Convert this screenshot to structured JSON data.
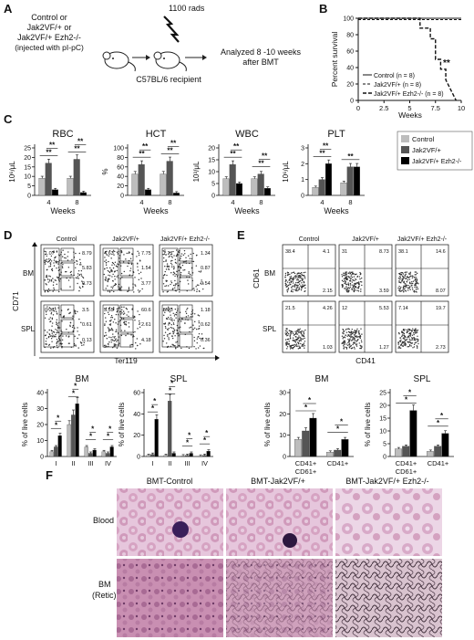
{
  "panel_labels": [
    "A",
    "B",
    "C",
    "D",
    "E",
    "F"
  ],
  "panelA": {
    "donor_text": [
      "Control or",
      "Jak2VF/+ or",
      "Jak2VF/+ Ezh2-/-",
      "(injected with pI-pC)"
    ],
    "dose": "1100 rads",
    "recipient": "C57BL/6 recipient",
    "analysis": [
      "Analyzed 8 -10 weeks",
      "after BMT"
    ]
  },
  "panelB": {
    "ylabel": "Percent survival",
    "xlabel": "Weeks",
    "xticks": [
      "0",
      "2.5",
      "5",
      "7.5",
      "10"
    ],
    "yticks": [
      "0",
      "20",
      "40",
      "60",
      "80",
      "100"
    ],
    "legend": [
      "Control (n = 8)",
      "Jak2VF/+ (n = 8)",
      "Jak2VF/+ Ezh2-/- (n = 8)"
    ],
    "significance": "**"
  },
  "panelC": {
    "legend": [
      "Control",
      "Jak2VF/+",
      "Jak2VF/+ Ezh2-/-"
    ],
    "colors": [
      "#bdbdbd",
      "#555555",
      "#000000"
    ],
    "xlabel": "Weeks"
  },
  "chart_data": [
    {
      "type": "line",
      "ylabel": "Percent survival",
      "xlabel": "Weeks",
      "xlim": [
        0,
        10
      ],
      "ylim": [
        0,
        100
      ],
      "series": [
        {
          "name": "Control (n = 8)",
          "x": [
            0,
            10
          ],
          "y": [
            100,
            100
          ]
        },
        {
          "name": "Jak2VF/+ (n = 8)",
          "x": [
            0,
            10
          ],
          "y": [
            100,
            100
          ]
        },
        {
          "name": "Jak2VF/+ Ezh2-/- (n = 8)",
          "x": [
            0,
            6,
            6,
            7,
            7,
            7.5,
            7.5,
            8,
            8,
            8.5,
            8.5,
            9.5
          ],
          "y": [
            100,
            100,
            88,
            88,
            75,
            75,
            50,
            50,
            38,
            38,
            25,
            0
          ]
        }
      ]
    },
    {
      "type": "bar",
      "title": "RBC",
      "ylabel": "10⁶/μL",
      "xlabel": "Weeks",
      "categories": [
        "4",
        "8"
      ],
      "ylim": [
        0,
        25
      ],
      "yticks": [
        "0",
        "5",
        "10",
        "15",
        "20",
        "25"
      ],
      "series": [
        {
          "name": "Control",
          "values": [
            9,
            9
          ]
        },
        {
          "name": "Jak2VF/+",
          "values": [
            17,
            19
          ]
        },
        {
          "name": "Jak2VF/+ Ezh2-/-",
          "values": [
            3,
            1.5
          ]
        }
      ],
      "annotations": [
        "**",
        "**",
        "**",
        "**"
      ]
    },
    {
      "type": "bar",
      "title": "HCT",
      "ylabel": "%",
      "xlabel": "Weeks",
      "categories": [
        "4",
        "8"
      ],
      "ylim": [
        0,
        100
      ],
      "yticks": [
        "0",
        "20",
        "40",
        "60",
        "80",
        "100"
      ],
      "series": [
        {
          "name": "Control",
          "values": [
            45,
            45
          ]
        },
        {
          "name": "Jak2VF/+",
          "values": [
            65,
            72
          ]
        },
        {
          "name": "Jak2VF/+ Ezh2-/-",
          "values": [
            12,
            5
          ]
        }
      ],
      "annotations": [
        "**",
        "**",
        "**",
        "**"
      ]
    },
    {
      "type": "bar",
      "title": "WBC",
      "ylabel": "10³/μL",
      "xlabel": "Weeks",
      "categories": [
        "4",
        "8"
      ],
      "ylim": [
        0,
        20
      ],
      "yticks": [
        "0",
        "5",
        "10",
        "15",
        "20"
      ],
      "series": [
        {
          "name": "Control",
          "values": [
            7,
            7
          ]
        },
        {
          "name": "Jak2VF/+",
          "values": [
            13,
            9
          ]
        },
        {
          "name": "Jak2VF/+ Ezh2-/-",
          "values": [
            5,
            3
          ]
        }
      ],
      "annotations": [
        "**",
        "**",
        "**",
        "**"
      ]
    },
    {
      "type": "bar",
      "title": "PLT",
      "ylabel": "10⁶/μL",
      "xlabel": "Weeks",
      "categories": [
        "4",
        "8"
      ],
      "ylim": [
        0,
        3
      ],
      "yticks": [
        "0",
        "1",
        "2",
        "3"
      ],
      "series": [
        {
          "name": "Control",
          "values": [
            0.5,
            0.8
          ]
        },
        {
          "name": "Jak2VF/+",
          "values": [
            1.0,
            1.8
          ]
        },
        {
          "name": "Jak2VF/+ Ezh2-/-",
          "values": [
            2.0,
            1.8
          ]
        }
      ],
      "annotations": [
        "**",
        "**",
        "**"
      ]
    },
    {
      "type": "bar",
      "title": "BM",
      "ylabel": "% of live cells",
      "categories": [
        "I",
        "II",
        "III",
        "IV"
      ],
      "ylim": [
        0,
        40
      ],
      "yticks": [
        "0",
        "10",
        "20",
        "30",
        "40"
      ],
      "series": [
        {
          "name": "Control",
          "values": [
            3,
            20,
            6,
            3
          ]
        },
        {
          "name": "Jak2VF/+",
          "values": [
            6,
            26,
            2,
            2
          ]
        },
        {
          "name": "Jak2VF/+ Ezh2-/-",
          "values": [
            13,
            33,
            4,
            6
          ]
        }
      ],
      "annotations": [
        "*",
        "*",
        "*",
        "*",
        "*",
        "*",
        "*",
        "*"
      ]
    },
    {
      "type": "bar",
      "title": "SPL",
      "ylabel": "% of live cells",
      "categories": [
        "I",
        "II",
        "III",
        "IV"
      ],
      "ylim": [
        0,
        60
      ],
      "yticks": [
        "0",
        "20",
        "40",
        "60"
      ],
      "series": [
        {
          "name": "Control",
          "values": [
            1,
            1,
            0.5,
            0.3
          ]
        },
        {
          "name": "Jak2VF/+",
          "values": [
            2,
            52,
            1,
            1
          ]
        },
        {
          "name": "Jak2VF/+ Ezh2-/-",
          "values": [
            35,
            3,
            3,
            5
          ]
        }
      ],
      "annotations": [
        "*",
        "*",
        "*",
        "*",
        "*",
        "*",
        "*",
        "*"
      ]
    },
    {
      "type": "bar",
      "title": "BM",
      "ylabel": "% of live cells",
      "categories": [
        "CD41+ CD61+",
        "CD41+"
      ],
      "ylim": [
        0,
        30
      ],
      "yticks": [
        "0",
        "10",
        "20",
        "30"
      ],
      "series": [
        {
          "name": "Control",
          "values": [
            8,
            2
          ]
        },
        {
          "name": "Jak2VF/+",
          "values": [
            12,
            3
          ]
        },
        {
          "name": "Jak2VF/+ Ezh2-/-",
          "values": [
            18,
            8
          ]
        }
      ],
      "annotations": [
        "*",
        "*",
        "*",
        "*"
      ]
    },
    {
      "type": "bar",
      "title": "SPL",
      "ylabel": "% of live cells",
      "categories": [
        "CD41+ CD61+",
        "CD41+"
      ],
      "ylim": [
        0,
        25
      ],
      "yticks": [
        "0",
        "5",
        "10",
        "15",
        "20",
        "25"
      ],
      "series": [
        {
          "name": "Control",
          "values": [
            3,
            2
          ]
        },
        {
          "name": "Jak2VF/+",
          "values": [
            4,
            4
          ]
        },
        {
          "name": "Jak2VF/+ Ezh2-/-",
          "values": [
            18,
            9
          ]
        }
      ],
      "annotations": [
        "*",
        "*",
        "*",
        "*"
      ]
    }
  ],
  "panelD": {
    "columns": [
      "Control",
      "Jak2VF/+",
      "Jak2VF/+ Ezh2-/-"
    ],
    "rows": [
      "BM",
      "SPL"
    ],
    "ylabel": "CD71",
    "xlabel": "Ter119",
    "gate_values": [
      [
        [
          "1.07",
          "8.79",
          "5.83",
          "0.73"
        ],
        [
          "4.63",
          "7.75",
          "1.54",
          "3.77"
        ],
        [
          "1.21",
          "1.34",
          "0.87",
          "0.54"
        ]
      ],
      [
        [
          "0.31",
          "3.5",
          "0.61",
          "0.13"
        ],
        [
          "5.55",
          "60.6",
          "2.61",
          "4.18"
        ],
        [
          "5.33",
          "1.18",
          "0.62",
          "0.36"
        ]
      ]
    ]
  },
  "panelE": {
    "columns": [
      "Control",
      "Jak2VF/+",
      "Jak2VF/+ Ezh2-/-"
    ],
    "rows": [
      "BM",
      "SPL"
    ],
    "ylabel": "CD61",
    "xlabel": "CD41",
    "quadrants": [
      [
        [
          "38.4",
          "4.1",
          "2.15"
        ],
        [
          "31",
          "8.73",
          "3.59"
        ],
        [
          "38.1",
          "14.6",
          "8.07"
        ]
      ],
      [
        [
          "21.5",
          "4.26",
          "1.03"
        ],
        [
          "12",
          "5.53",
          "1.27"
        ],
        [
          "7.14",
          "19.7",
          "2.73"
        ]
      ]
    ]
  },
  "panelF": {
    "columns": [
      "BMT-Control",
      "BMT-Jak2VF/+",
      "BMT-Jak2VF/+ Ezh2-/-"
    ],
    "rows": [
      "Blood",
      "BM",
      "(Retic)"
    ]
  }
}
